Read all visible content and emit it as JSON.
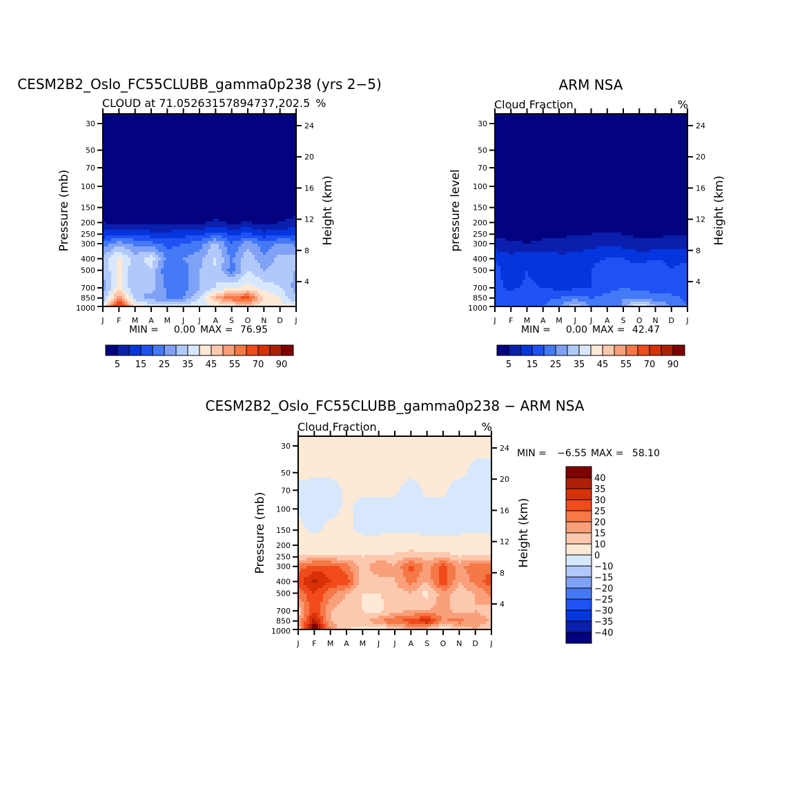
{
  "chart_data": [
    {
      "type": "heatmap",
      "title": "CESM2B2_Oslo_FC55CLUBB_gamma0p238 (yrs 2-5)",
      "subtitle_left": "CLOUD at 71.05263157894737,202.5",
      "subtitle_right": "%",
      "ylabel": "Pressure (mb)",
      "ylabel_right": "Height (km)",
      "x_ticks": [
        "J",
        "F",
        "M",
        "A",
        "M",
        "J",
        "J",
        "A",
        "S",
        "O",
        "N",
        "D",
        "J"
      ],
      "y_ticks": [
        30,
        50,
        70,
        100,
        150,
        200,
        250,
        300,
        400,
        500,
        700,
        850,
        1000
      ],
      "y_right_ticks": [
        4,
        8,
        12,
        16,
        20,
        24
      ],
      "stats": {
        "min_label": "MIN =",
        "min": "0.00",
        "max_label": "MAX =",
        "max": "76.95"
      },
      "colorbar": {
        "boundaries": [
          5,
          10,
          15,
          20,
          25,
          30,
          35,
          40,
          45,
          50,
          55,
          60,
          70,
          80,
          90
        ],
        "labels": [
          "5",
          "15",
          "25",
          "35",
          "45",
          "55",
          "70",
          "90"
        ]
      },
      "levels": [
        1000,
        850,
        700,
        500,
        400,
        300,
        250,
        200,
        150,
        100,
        70,
        50,
        30
      ],
      "values": [
        [
          40,
          72,
          45,
          38,
          38,
          38,
          38,
          40,
          42,
          45,
          42,
          42,
          40
        ],
        [
          30,
          55,
          32,
          28,
          25,
          25,
          35,
          50,
          60,
          62,
          45,
          40,
          30
        ],
        [
          28,
          42,
          30,
          32,
          24,
          22,
          30,
          35,
          40,
          42,
          38,
          35,
          28
        ],
        [
          30,
          42,
          30,
          34,
          20,
          22,
          30,
          35,
          22,
          35,
          30,
          32,
          30
        ],
        [
          32,
          42,
          32,
          38,
          24,
          25,
          28,
          36,
          24,
          34,
          26,
          32,
          32
        ],
        [
          22,
          28,
          24,
          22,
          18,
          20,
          22,
          32,
          20,
          28,
          22,
          26,
          24
        ],
        [
          12,
          14,
          14,
          12,
          12,
          13,
          14,
          18,
          14,
          16,
          12,
          14,
          14
        ],
        [
          5,
          3,
          4,
          3,
          3,
          3,
          4,
          6,
          4,
          5,
          3,
          5,
          7
        ],
        [
          1,
          0,
          0,
          0,
          0,
          0,
          0,
          1,
          0,
          0,
          0,
          1,
          2
        ],
        [
          0,
          0,
          0,
          0,
          0,
          0,
          0,
          0,
          0,
          0,
          0,
          0,
          0
        ],
        [
          0,
          0,
          0,
          0,
          0,
          0,
          0,
          0,
          0,
          0,
          0,
          0,
          0
        ],
        [
          0,
          0,
          0,
          0,
          0,
          0,
          0,
          0,
          0,
          0,
          0,
          0,
          0
        ],
        [
          0,
          0,
          0,
          0,
          0,
          0,
          0,
          0,
          0,
          0,
          0,
          0,
          0
        ]
      ]
    },
    {
      "type": "heatmap",
      "title": "ARM NSA",
      "subtitle_left": "Cloud Fraction",
      "subtitle_right": "%",
      "ylabel": "pressure level",
      "ylabel_right": "Height (km)",
      "x_ticks": [
        "J",
        "F",
        "M",
        "A",
        "M",
        "J",
        "J",
        "A",
        "S",
        "O",
        "N",
        "D",
        "J"
      ],
      "y_ticks": [
        30,
        50,
        70,
        100,
        150,
        200,
        250,
        300,
        400,
        500,
        700,
        850,
        1000
      ],
      "y_right_ticks": [
        4,
        8,
        12,
        16,
        20,
        24
      ],
      "stats": {
        "min_label": "MIN =",
        "min": "0.00",
        "max_label": "MAX =",
        "max": "42.47"
      },
      "colorbar": {
        "boundaries": [
          5,
          10,
          15,
          20,
          25,
          30,
          35,
          40,
          45,
          50,
          55,
          60,
          70,
          80,
          90
        ],
        "labels": [
          "5",
          "15",
          "25",
          "35",
          "45",
          "55",
          "70",
          "90"
        ]
      },
      "levels": [
        1000,
        850,
        700,
        500,
        400,
        300,
        250,
        200,
        150,
        100,
        70,
        50,
        30
      ],
      "values": [
        [
          20,
          20,
          20,
          20,
          25,
          35,
          25,
          20,
          25,
          42,
          30,
          25,
          20
        ],
        [
          18,
          18,
          20,
          18,
          20,
          22,
          20,
          22,
          25,
          25,
          22,
          22,
          18
        ],
        [
          16,
          14,
          16,
          15,
          14,
          14,
          15,
          18,
          20,
          18,
          18,
          16,
          16
        ],
        [
          17,
          12,
          15,
          12,
          14,
          12,
          15,
          18,
          17,
          16,
          18,
          15,
          17
        ],
        [
          14,
          12,
          14,
          14,
          12,
          12,
          14,
          15,
          15,
          14,
          15,
          14,
          14
        ],
        [
          7,
          6,
          5,
          6,
          6,
          7,
          8,
          9,
          8,
          6,
          6,
          7,
          8
        ],
        [
          4,
          3,
          3,
          4,
          4,
          5,
          5,
          6,
          5,
          4,
          4,
          5,
          5
        ],
        [
          1,
          1,
          1,
          1,
          1,
          1,
          2,
          2,
          1,
          1,
          1,
          1,
          1
        ],
        [
          0,
          0,
          0,
          0,
          0,
          0,
          0,
          0,
          0,
          0,
          0,
          0,
          0
        ],
        [
          0,
          0,
          0,
          0,
          0,
          0,
          0,
          0,
          0,
          0,
          0,
          0,
          0
        ],
        [
          0,
          0,
          0,
          0,
          0,
          0,
          0,
          0,
          0,
          0,
          0,
          0,
          0
        ],
        [
          0,
          0,
          0,
          0,
          0,
          0,
          0,
          0,
          0,
          0,
          0,
          0,
          0
        ],
        [
          0,
          0,
          0,
          0,
          0,
          0,
          0,
          0,
          0,
          0,
          0,
          0,
          0
        ]
      ]
    },
    {
      "type": "heatmap",
      "title": "CESM2B2_Oslo_FC55CLUBB_gamma0p238 - ARM NSA",
      "subtitle_left": "Cloud Fraction",
      "subtitle_right": "%",
      "ylabel": "Pressure (mb)",
      "ylabel_right": "Height (km)",
      "x_ticks": [
        "J",
        "F",
        "M",
        "A",
        "M",
        "J",
        "J",
        "A",
        "S",
        "O",
        "N",
        "D",
        "J"
      ],
      "y_ticks": [
        30,
        50,
        70,
        100,
        150,
        200,
        250,
        300,
        400,
        500,
        700,
        850,
        1000
      ],
      "y_right_ticks": [
        4,
        8,
        12,
        16,
        20,
        24
      ],
      "stats": {
        "min_label": "MIN =",
        "min": "-6.55",
        "max_label": "MAX =",
        "max": "58.10"
      },
      "colorbar": {
        "boundaries": [
          -40,
          -35,
          -30,
          -25,
          -20,
          -15,
          -10,
          0,
          10,
          15,
          20,
          25,
          30,
          35,
          40
        ],
        "labels": [
          "-40",
          "-35",
          "-30",
          "-25",
          "-20",
          "-15",
          "-10",
          "0",
          "10",
          "15",
          "20",
          "25",
          "30",
          "35",
          "40"
        ]
      },
      "levels": [
        1000,
        850,
        700,
        500,
        400,
        300,
        250,
        200,
        150,
        100,
        70,
        50,
        30
      ],
      "values": [
        [
          10,
          50,
          20,
          10,
          8,
          5,
          10,
          15,
          12,
          5,
          12,
          15,
          10
        ],
        [
          15,
          38,
          15,
          12,
          12,
          20,
          25,
          28,
          35,
          20,
          22,
          18,
          15
        ],
        [
          12,
          30,
          15,
          12,
          10,
          8,
          13,
          15,
          15,
          18,
          12,
          15,
          12
        ],
        [
          22,
          30,
          22,
          15,
          10,
          10,
          12,
          15,
          8,
          18,
          12,
          15,
          22
        ],
        [
          28,
          36,
          30,
          28,
          12,
          12,
          15,
          22,
          15,
          30,
          15,
          22,
          28
        ],
        [
          22,
          28,
          28,
          22,
          12,
          20,
          15,
          28,
          18,
          28,
          18,
          25,
          22
        ],
        [
          12,
          12,
          12,
          12,
          10,
          12,
          12,
          15,
          12,
          14,
          10,
          12,
          12
        ],
        [
          5,
          5,
          5,
          5,
          5,
          5,
          5,
          6,
          5,
          5,
          5,
          5,
          5
        ],
        [
          2,
          -2,
          2,
          2,
          -2,
          -2,
          -1,
          -2,
          -2,
          -2,
          -2,
          -1,
          -2
        ],
        [
          -1,
          -2,
          -2,
          1,
          -2,
          -2,
          -2,
          -1,
          -2,
          -2,
          -1,
          -1,
          -1
        ],
        [
          -1,
          -2,
          -2,
          1,
          1,
          1,
          1,
          -2,
          1,
          1,
          -2,
          -2,
          -2
        ],
        [
          1,
          1,
          1,
          1,
          1,
          1,
          1,
          1,
          1,
          1,
          1,
          -1,
          -1
        ],
        [
          1,
          1,
          1,
          1,
          1,
          1,
          1,
          1,
          1,
          1,
          1,
          1,
          1
        ]
      ]
    }
  ],
  "palette": [
    "#03037f",
    "#0b1fae",
    "#0535de",
    "#1f52f5",
    "#4479f6",
    "#7fa2f6",
    "#b1c9fa",
    "#d8e8fc",
    "#fde9d6",
    "#fcc8ae",
    "#f9a07b",
    "#f57847",
    "#f14b1c",
    "#d83108",
    "#b01f05",
    "#800000"
  ]
}
